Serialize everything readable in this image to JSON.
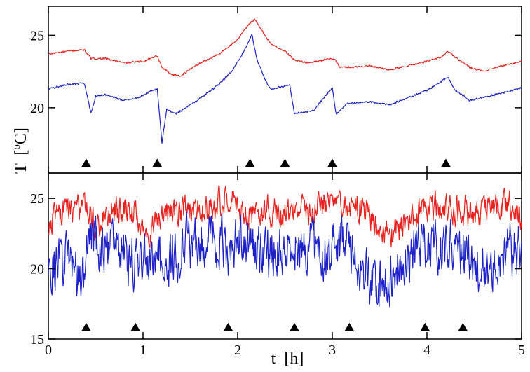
{
  "chart_data": [
    {
      "type": "line",
      "panel": "top",
      "xlim": [
        0,
        5
      ],
      "ylim": [
        15.5,
        27
      ],
      "yticks": [
        20,
        25
      ],
      "series": [
        {
          "color": "#e8231f",
          "points": [
            [
              0,
              23.7
            ],
            [
              0.2,
              23.9
            ],
            [
              0.38,
              24.0
            ],
            [
              0.45,
              23.4
            ],
            [
              0.6,
              23.4
            ],
            [
              0.8,
              23.1
            ],
            [
              1.0,
              23.2
            ],
            [
              1.15,
              23.6
            ],
            [
              1.2,
              22.8
            ],
            [
              1.3,
              22.3
            ],
            [
              1.4,
              22.2
            ],
            [
              1.55,
              22.9
            ],
            [
              1.8,
              23.7
            ],
            [
              2.0,
              24.7
            ],
            [
              2.12,
              25.8
            ],
            [
              2.18,
              26.1
            ],
            [
              2.25,
              25.4
            ],
            [
              2.35,
              24.4
            ],
            [
              2.5,
              23.9
            ],
            [
              2.6,
              23.3
            ],
            [
              2.75,
              23.1
            ],
            [
              2.9,
              23.3
            ],
            [
              3.02,
              23.4
            ],
            [
              3.08,
              22.8
            ],
            [
              3.2,
              22.8
            ],
            [
              3.4,
              22.9
            ],
            [
              3.6,
              22.6
            ],
            [
              3.8,
              22.9
            ],
            [
              4.0,
              23.2
            ],
            [
              4.15,
              23.5
            ],
            [
              4.22,
              23.9
            ],
            [
              4.3,
              23.5
            ],
            [
              4.45,
              22.8
            ],
            [
              4.6,
              22.5
            ],
            [
              4.8,
              22.9
            ],
            [
              5.0,
              23.2
            ]
          ]
        },
        {
          "color": "#1c22c7",
          "points": [
            [
              0,
              21.3
            ],
            [
              0.2,
              21.6
            ],
            [
              0.38,
              21.7
            ],
            [
              0.42,
              20.5
            ],
            [
              0.45,
              19.6
            ],
            [
              0.5,
              20.8
            ],
            [
              0.6,
              20.9
            ],
            [
              0.8,
              20.5
            ],
            [
              0.95,
              20.7
            ],
            [
              1.1,
              21.2
            ],
            [
              1.15,
              21.3
            ],
            [
              1.2,
              17.6
            ],
            [
              1.25,
              19.9
            ],
            [
              1.35,
              19.6
            ],
            [
              1.55,
              20.4
            ],
            [
              1.8,
              21.6
            ],
            [
              1.95,
              22.6
            ],
            [
              2.1,
              24.3
            ],
            [
              2.15,
              25.1
            ],
            [
              2.2,
              23.4
            ],
            [
              2.3,
              21.8
            ],
            [
              2.35,
              21.3
            ],
            [
              2.5,
              21.5
            ],
            [
              2.55,
              21.6
            ],
            [
              2.6,
              19.6
            ],
            [
              2.8,
              19.8
            ],
            [
              3.0,
              21.4
            ],
            [
              3.04,
              19.5
            ],
            [
              3.15,
              20.3
            ],
            [
              3.4,
              20.4
            ],
            [
              3.6,
              20.2
            ],
            [
              3.8,
              20.7
            ],
            [
              4.0,
              21.2
            ],
            [
              4.1,
              21.6
            ],
            [
              4.22,
              22.1
            ],
            [
              4.3,
              21.2
            ],
            [
              4.45,
              20.5
            ],
            [
              4.65,
              20.8
            ],
            [
              4.85,
              21.1
            ],
            [
              5.0,
              21.4
            ]
          ]
        }
      ],
      "markers_x": [
        0.4,
        1.15,
        2.13,
        2.5,
        3.0,
        4.2
      ],
      "markers_y": 16.2
    },
    {
      "type": "line",
      "panel": "bottom",
      "xlim": [
        0,
        5
      ],
      "ylim": [
        15,
        26.8
      ],
      "yticks": [
        15,
        20,
        25
      ],
      "series": [
        {
          "color": "#e8231f",
          "points": [
            [
              0,
              23.3
            ],
            [
              0.2,
              24.5
            ],
            [
              0.4,
              24.1
            ],
            [
              0.5,
              22.8
            ],
            [
              0.7,
              24.3
            ],
            [
              0.9,
              24.2
            ],
            [
              1.0,
              22.4
            ],
            [
              1.2,
              23.6
            ],
            [
              1.4,
              24.2
            ],
            [
              1.6,
              24.0
            ],
            [
              1.75,
              24.6
            ],
            [
              1.9,
              24.8
            ],
            [
              2.1,
              23.9
            ],
            [
              2.3,
              24.2
            ],
            [
              2.5,
              23.8
            ],
            [
              2.7,
              24.1
            ],
            [
              2.9,
              24.5
            ],
            [
              3.1,
              24.6
            ],
            [
              3.3,
              24.2
            ],
            [
              3.5,
              22.8
            ],
            [
              3.7,
              22.6
            ],
            [
              3.9,
              24.2
            ],
            [
              4.1,
              24.4
            ],
            [
              4.3,
              24.1
            ],
            [
              4.5,
              24.0
            ],
            [
              4.7,
              24.4
            ],
            [
              4.9,
              24.6
            ],
            [
              5.0,
              23.7
            ]
          ],
          "noise": 1.2
        },
        {
          "color": "#1c22c7",
          "points": [
            [
              0,
              19.8
            ],
            [
              0.2,
              20.5
            ],
            [
              0.35,
              18.9
            ],
            [
              0.45,
              22.0
            ],
            [
              0.7,
              21.2
            ],
            [
              0.9,
              20.5
            ],
            [
              1.1,
              21.0
            ],
            [
              1.3,
              20.3
            ],
            [
              1.5,
              21.8
            ],
            [
              1.7,
              22.4
            ],
            [
              1.9,
              21.3
            ],
            [
              2.1,
              22.1
            ],
            [
              2.3,
              21.0
            ],
            [
              2.5,
              21.4
            ],
            [
              2.7,
              21.4
            ],
            [
              2.9,
              21.3
            ],
            [
              3.1,
              22.0
            ],
            [
              3.3,
              20.5
            ],
            [
              3.4,
              19.0
            ],
            [
              3.55,
              18.7
            ],
            [
              3.7,
              20.5
            ],
            [
              3.85,
              21.2
            ],
            [
              4.0,
              21.8
            ],
            [
              4.2,
              22.0
            ],
            [
              4.4,
              21.3
            ],
            [
              4.6,
              20.1
            ],
            [
              4.8,
              21.2
            ],
            [
              5.0,
              21.0
            ]
          ],
          "noise": 2.2
        }
      ],
      "markers_x": [
        0.4,
        0.92,
        1.9,
        2.6,
        3.18,
        3.98,
        4.38
      ],
      "markers_y": 15.85
    }
  ],
  "axes": {
    "xticks": [
      0,
      1,
      2,
      3,
      4,
      5
    ],
    "xlabel": "t  [h]",
    "ylabel_main": "T  [",
    "ylabel_sup": "o",
    "ylabel_end": "C]"
  }
}
